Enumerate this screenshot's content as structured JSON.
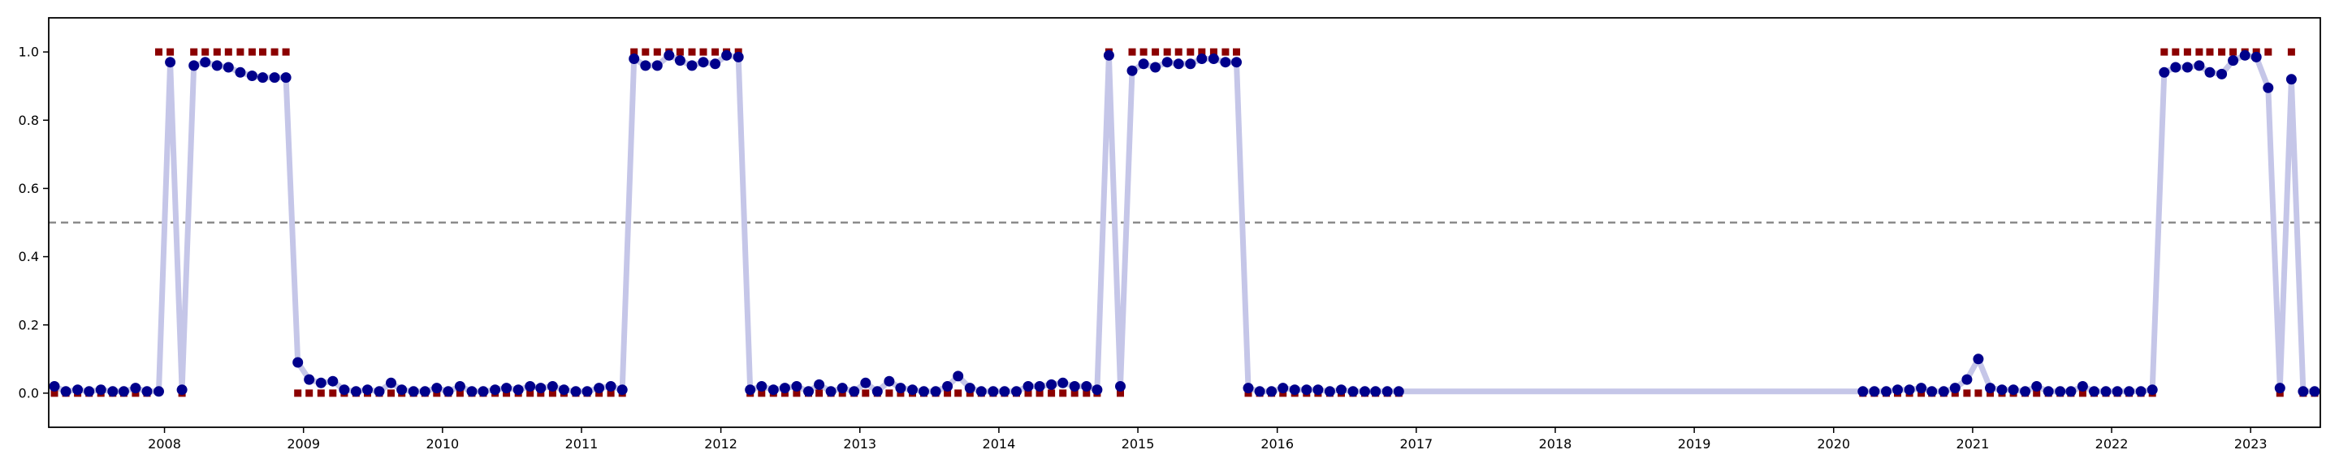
{
  "chart_data": {
    "type": "line",
    "title": "",
    "xlabel": "",
    "ylabel": "",
    "xlim": [
      "2007-09-01",
      "2023-12-31"
    ],
    "ylim": [
      -0.1,
      1.1
    ],
    "grid": false,
    "legend": "none",
    "x_ticks": [
      "2008",
      "2009",
      "2010",
      "2011",
      "2012",
      "2013",
      "2014",
      "2015",
      "2016",
      "2017",
      "2018",
      "2019",
      "2020",
      "2021",
      "2022",
      "2023"
    ],
    "y_ticks": [
      "0.0",
      "0.2",
      "0.4",
      "0.6",
      "0.8",
      "1.0"
    ],
    "threshold": 0.5,
    "colors": {
      "probability_line": "#c5c6e8",
      "probability_marker": "#00008b",
      "label_marker": "#8b0000",
      "threshold_line": "#808080"
    },
    "series": [
      {
        "kind": "probability",
        "x": [
          "2007-09",
          "2007-10",
          "2007-11",
          "2007-12",
          "2008-01",
          "2008-02",
          "2008-03",
          "2008-04",
          "2008-05",
          "2008-06",
          "2008-07",
          "2008-08",
          "2008-09",
          "2008-10",
          "2008-11",
          "2008-12",
          "2009-01",
          "2009-02",
          "2009-03",
          "2009-04",
          "2009-05",
          "2009-06",
          "2009-07",
          "2009-08",
          "2009-09",
          "2009-10",
          "2009-11",
          "2009-12",
          "2010-01",
          "2010-02",
          "2010-03",
          "2010-04",
          "2010-05",
          "2010-06",
          "2010-07",
          "2010-08",
          "2010-09",
          "2010-10",
          "2010-11",
          "2010-12",
          "2011-01",
          "2011-02",
          "2011-03",
          "2011-04",
          "2011-05",
          "2011-06",
          "2011-07",
          "2011-08",
          "2011-09",
          "2011-10",
          "2011-11",
          "2011-12",
          "2012-01",
          "2012-02",
          "2012-03",
          "2012-04",
          "2012-05",
          "2012-06",
          "2012-07",
          "2012-08",
          "2012-09",
          "2012-10",
          "2012-11",
          "2012-12",
          "2013-01",
          "2013-02",
          "2013-03",
          "2013-04",
          "2013-05",
          "2013-06",
          "2013-07",
          "2013-08",
          "2013-09",
          "2013-10",
          "2013-11",
          "2013-12",
          "2014-01",
          "2014-02",
          "2014-03",
          "2014-04",
          "2014-05",
          "2014-06",
          "2014-07",
          "2014-08",
          "2014-09",
          "2014-10",
          "2014-11",
          "2014-12",
          "2015-01",
          "2015-02",
          "2015-03",
          "2015-04",
          "2015-05",
          "2015-06",
          "2015-07",
          "2015-08",
          "2015-09",
          "2015-10",
          "2015-11",
          "2015-12",
          "2016-01",
          "2016-02",
          "2016-03",
          "2016-04",
          "2016-05",
          "2016-06",
          "2016-07",
          "2016-08",
          "2016-09",
          "2016-10",
          "2016-11",
          "2016-12",
          "2017-01",
          "2017-02",
          "2017-03",
          "2017-04",
          "2017-05",
          "2020-09",
          "2020-10",
          "2020-11",
          "2020-12",
          "2021-01",
          "2021-02",
          "2021-03",
          "2021-04",
          "2021-05",
          "2021-06",
          "2021-07",
          "2021-08",
          "2021-09",
          "2021-10",
          "2021-11",
          "2021-12",
          "2022-01",
          "2022-02",
          "2022-03",
          "2022-04",
          "2022-05",
          "2022-06",
          "2022-07",
          "2022-08",
          "2022-09",
          "2022-10",
          "2022-11",
          "2022-12",
          "2023-01",
          "2023-02",
          "2023-03",
          "2023-04",
          "2023-05",
          "2023-06",
          "2023-07",
          "2023-08",
          "2023-09",
          "2023-10",
          "2023-11",
          "2023-12"
        ],
        "values": [
          0.02,
          0.005,
          0.01,
          0.005,
          0.01,
          0.005,
          0.005,
          0.015,
          0.005,
          0.005,
          0.97,
          0.01,
          0.96,
          0.97,
          0.96,
          0.955,
          0.94,
          0.93,
          0.925,
          0.925,
          0.925,
          0.09,
          0.04,
          0.03,
          0.035,
          0.01,
          0.005,
          0.01,
          0.005,
          0.03,
          0.01,
          0.005,
          0.005,
          0.015,
          0.005,
          0.02,
          0.005,
          0.005,
          0.01,
          0.015,
          0.01,
          0.02,
          0.015,
          0.02,
          0.01,
          0.005,
          0.005,
          0.015,
          0.02,
          0.01,
          0.98,
          0.96,
          0.96,
          0.99,
          0.975,
          0.96,
          0.97,
          0.965,
          0.99,
          0.985,
          0.01,
          0.02,
          0.01,
          0.015,
          0.02,
          0.005,
          0.025,
          0.005,
          0.015,
          0.005,
          0.03,
          0.005,
          0.035,
          0.015,
          0.01,
          0.005,
          0.005,
          0.02,
          0.05,
          0.015,
          0.005,
          0.005,
          0.005,
          0.005,
          0.02,
          0.02,
          0.025,
          0.03,
          0.02,
          0.02,
          0.01,
          0.99,
          0.02,
          0.945,
          0.965,
          0.955,
          0.97,
          0.965,
          0.965,
          0.98,
          0.98,
          0.97,
          0.97,
          0.015,
          0.005,
          0.005,
          0.015,
          0.01,
          0.01,
          0.01,
          0.005,
          0.01,
          0.005,
          0.005,
          0.005,
          0.005,
          0.005,
          0.005,
          0.005,
          0.005,
          0.01,
          0.01,
          0.015,
          0.005,
          0.005,
          0.015,
          0.04,
          0.1,
          0.015,
          0.01,
          0.01,
          0.005,
          0.02,
          0.005,
          0.005,
          0.005,
          0.02,
          0.005,
          0.005,
          0.005,
          0.005,
          0.005,
          0.01,
          0.94,
          0.955,
          0.955,
          0.96,
          0.94,
          0.935,
          0.975,
          0.99,
          0.985,
          0.895,
          0.015,
          0.92,
          0.005,
          0.005
        ]
      },
      {
        "kind": "label",
        "x": [
          "2007-09",
          "2007-10",
          "2007-11",
          "2007-12",
          "2008-01",
          "2008-02",
          "2008-03",
          "2008-04",
          "2008-05",
          "2008-06",
          "2008-07",
          "2008-08",
          "2008-09",
          "2008-10",
          "2008-11",
          "2008-12",
          "2009-01",
          "2009-02",
          "2009-03",
          "2009-04",
          "2009-05",
          "2009-06",
          "2009-07",
          "2009-08",
          "2009-09",
          "2009-10",
          "2009-11",
          "2009-12",
          "2010-01",
          "2010-02",
          "2010-03",
          "2010-04",
          "2010-05",
          "2010-06",
          "2010-07",
          "2010-08",
          "2010-09",
          "2010-10",
          "2010-11",
          "2010-12",
          "2011-01",
          "2011-02",
          "2011-03",
          "2011-04",
          "2011-05",
          "2011-06",
          "2011-07",
          "2011-08",
          "2011-09",
          "2011-10",
          "2011-11",
          "2011-12",
          "2012-01",
          "2012-02",
          "2012-03",
          "2012-04",
          "2012-05",
          "2012-06",
          "2012-07",
          "2012-08",
          "2012-09",
          "2012-10",
          "2012-11",
          "2012-12",
          "2013-01",
          "2013-02",
          "2013-03",
          "2013-04",
          "2013-05",
          "2013-06",
          "2013-07",
          "2013-08",
          "2013-09",
          "2013-10",
          "2013-11",
          "2013-12",
          "2014-01",
          "2014-02",
          "2014-03",
          "2014-04",
          "2014-05",
          "2014-06",
          "2014-07",
          "2014-08",
          "2014-09",
          "2014-10",
          "2014-11",
          "2014-12",
          "2015-01",
          "2015-02",
          "2015-03",
          "2015-04",
          "2015-05",
          "2015-06",
          "2015-07",
          "2015-08",
          "2015-09",
          "2015-10",
          "2015-11",
          "2015-12",
          "2016-01",
          "2016-02",
          "2016-03",
          "2016-04",
          "2016-05",
          "2016-06",
          "2016-07",
          "2016-08",
          "2016-09",
          "2016-10",
          "2016-11",
          "2016-12",
          "2017-01",
          "2017-02",
          "2017-03",
          "2017-04",
          "2017-05",
          "2020-09",
          "2020-10",
          "2020-11",
          "2020-12",
          "2021-01",
          "2021-02",
          "2021-03",
          "2021-04",
          "2021-05",
          "2021-06",
          "2021-07",
          "2021-08",
          "2021-09",
          "2021-10",
          "2021-11",
          "2021-12",
          "2022-01",
          "2022-02",
          "2022-03",
          "2022-04",
          "2022-05",
          "2022-06",
          "2022-07",
          "2022-08",
          "2022-09",
          "2022-10",
          "2022-11",
          "2022-12",
          "2023-01",
          "2023-02",
          "2023-03",
          "2023-04",
          "2023-05",
          "2023-06",
          "2023-07",
          "2023-08",
          "2023-09",
          "2023-10",
          "2023-11",
          "2023-12"
        ],
        "values": [
          0,
          0,
          0,
          0,
          0,
          0,
          0,
          0,
          0,
          1,
          1,
          0,
          1,
          1,
          1,
          1,
          1,
          1,
          1,
          1,
          1,
          0,
          0,
          0,
          0,
          0,
          0,
          0,
          0,
          0,
          0,
          0,
          0,
          0,
          0,
          0,
          0,
          0,
          0,
          0,
          0,
          0,
          0,
          0,
          0,
          0,
          0,
          0,
          0,
          0,
          1,
          1,
          1,
          1,
          1,
          1,
          1,
          1,
          1,
          1,
          0,
          0,
          0,
          0,
          0,
          0,
          0,
          0,
          0,
          0,
          0,
          0,
          0,
          0,
          0,
          0,
          0,
          0,
          0,
          0,
          0,
          0,
          0,
          0,
          0,
          0,
          0,
          0,
          0,
          0,
          0,
          1,
          0,
          1,
          1,
          1,
          1,
          1,
          1,
          1,
          1,
          1,
          1,
          0,
          0,
          0,
          0,
          0,
          0,
          0,
          0,
          0,
          0,
          0,
          0,
          0,
          0,
          0,
          0,
          0,
          0,
          0,
          0,
          0,
          0,
          0,
          0,
          0,
          0,
          0,
          0,
          0,
          0,
          0,
          0,
          0,
          0,
          0,
          0,
          0,
          0,
          0,
          0,
          1,
          1,
          1,
          1,
          1,
          1,
          1,
          1,
          1,
          1,
          0,
          1,
          0,
          0
        ]
      }
    ]
  }
}
